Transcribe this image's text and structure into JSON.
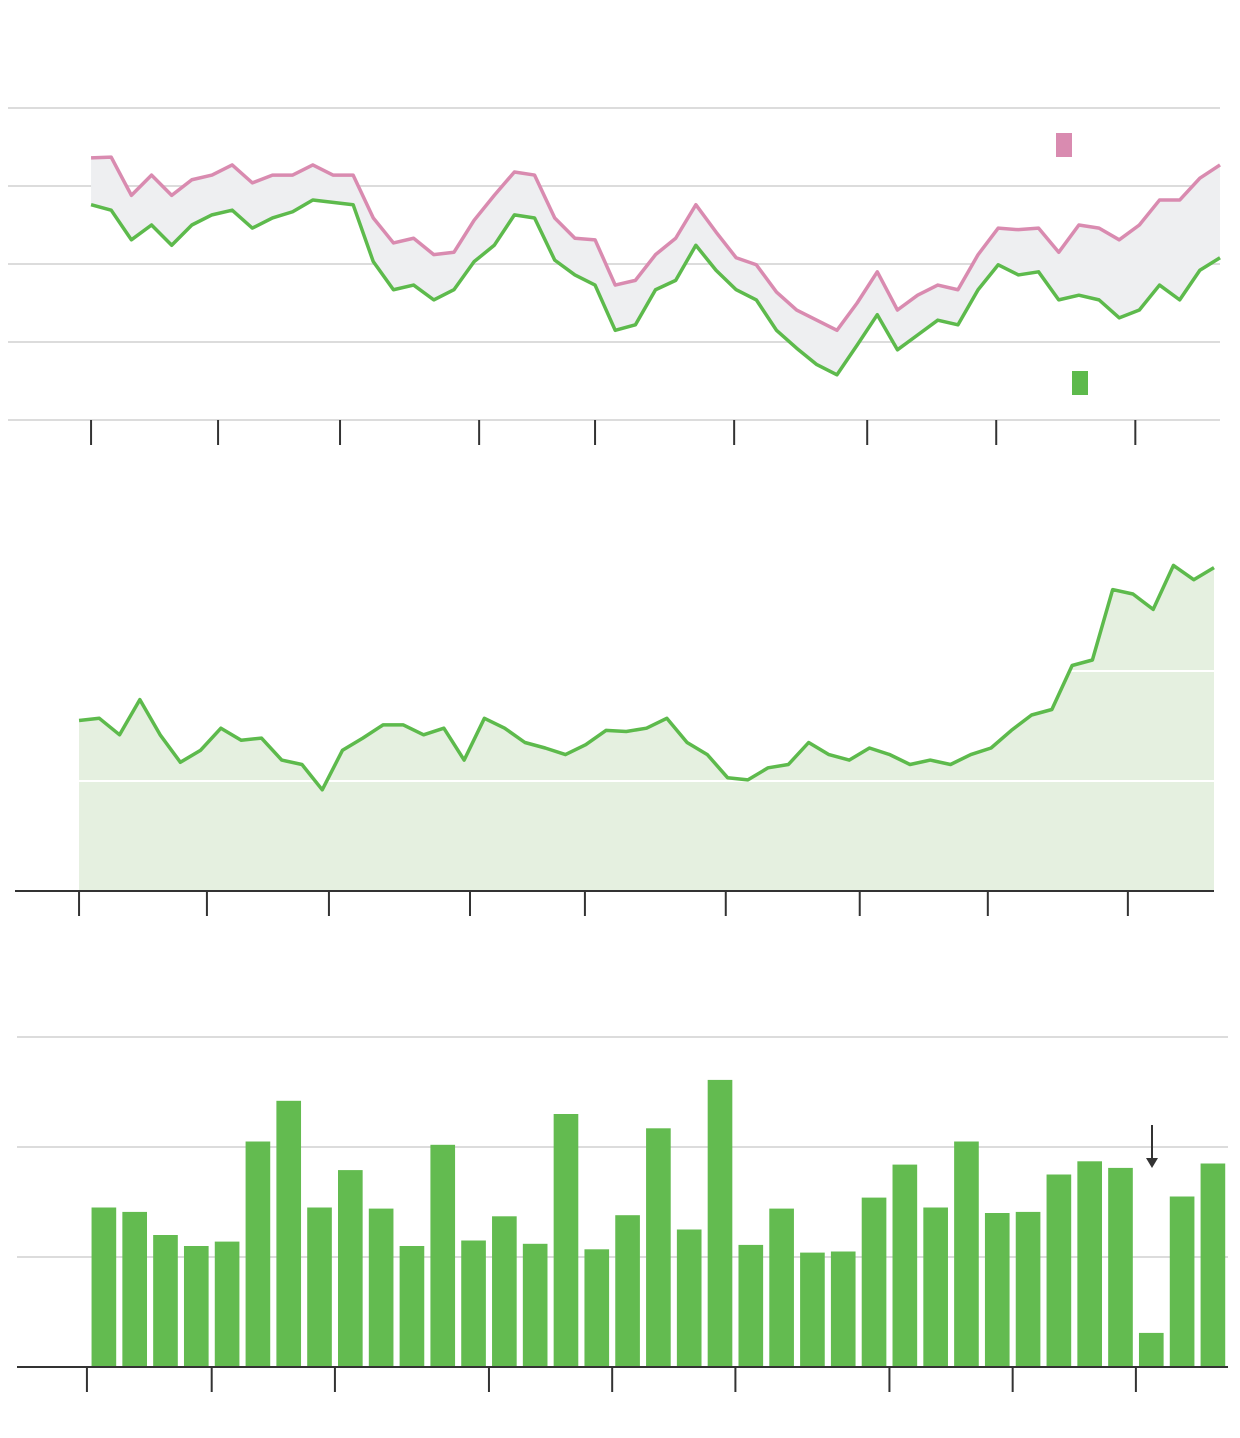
{
  "chart_data": [
    {
      "type": "line",
      "band": true,
      "legend": true,
      "grid": true,
      "axis_line": false,
      "x": [
        0,
        1,
        2,
        3,
        4,
        5,
        6,
        7,
        8,
        9,
        10,
        11,
        12,
        13,
        14,
        15,
        16,
        17,
        18,
        19,
        20,
        21,
        22,
        23,
        24,
        25,
        26,
        27,
        28,
        29,
        30,
        31,
        32,
        33,
        34,
        35,
        36,
        37,
        38,
        39,
        40,
        41,
        42,
        43,
        44,
        45,
        46,
        47,
        48,
        49,
        50,
        51,
        52,
        53,
        54,
        55,
        56
      ],
      "xlim": [
        -4.12,
        56
      ],
      "xticks": [
        0,
        6.3,
        12.35,
        19.25,
        25,
        31.9,
        38.5,
        44.9,
        51.8
      ],
      "ylim": [
        0,
        4
      ],
      "yticks": [
        0,
        1,
        2,
        3,
        4
      ],
      "series": [
        {
          "color": "#d98bb0",
          "values": [
            3.36,
            3.37,
            2.88,
            3.14,
            2.88,
            3.08,
            3.14,
            3.27,
            3.04,
            3.14,
            3.14,
            3.27,
            3.14,
            3.14,
            2.59,
            2.27,
            2.33,
            2.12,
            2.15,
            2.56,
            2.88,
            3.18,
            3.14,
            2.59,
            2.33,
            2.31,
            1.73,
            1.79,
            2.12,
            2.33,
            2.76,
            2.41,
            2.08,
            1.99,
            1.64,
            1.41,
            1.28,
            1.15,
            1.5,
            1.9,
            1.41,
            1.6,
            1.73,
            1.67,
            2.12,
            2.46,
            2.44,
            2.46,
            2.15,
            2.5,
            2.46,
            2.31,
            2.5,
            2.82,
            2.82,
            3.1,
            3.27
          ]
        },
        {
          "color": "#5dba4c",
          "values": [
            2.76,
            2.69,
            2.31,
            2.5,
            2.24,
            2.5,
            2.63,
            2.69,
            2.46,
            2.59,
            2.67,
            2.82,
            2.79,
            2.76,
            2.03,
            1.67,
            1.73,
            1.54,
            1.67,
            2.03,
            2.24,
            2.63,
            2.59,
            2.05,
            1.86,
            1.73,
            1.15,
            1.22,
            1.67,
            1.79,
            2.24,
            1.92,
            1.67,
            1.54,
            1.15,
            0.92,
            0.71,
            0.58,
            0.96,
            1.35,
            0.9,
            1.09,
            1.28,
            1.22,
            1.67,
            1.99,
            1.86,
            1.9,
            1.54,
            1.6,
            1.54,
            1.31,
            1.41,
            1.73,
            1.54,
            1.92,
            2.08
          ]
        }
      ]
    },
    {
      "type": "area",
      "grid": true,
      "axis_line": true,
      "color": "#5dba4c",
      "fill": "#e5f0e0",
      "x": [
        0,
        1,
        2,
        3,
        4,
        5,
        6,
        7,
        8,
        9,
        10,
        11,
        12,
        13,
        14,
        15,
        16,
        17,
        18,
        19,
        20,
        21,
        22,
        23,
        24,
        25,
        26,
        27,
        28,
        29,
        30,
        31,
        32,
        33,
        34,
        35,
        36,
        37,
        38,
        39,
        40,
        41,
        42,
        43,
        44,
        45,
        46,
        47,
        48,
        49,
        50,
        51,
        52,
        53,
        54,
        55,
        56
      ],
      "xlim": [
        -3.16,
        56
      ],
      "xticks": [
        0,
        6.31,
        12.33,
        19.29,
        24.96,
        31.91,
        38.52,
        44.84,
        51.75
      ],
      "ylim": [
        0,
        3
      ],
      "yticks": [
        0,
        1,
        2,
        3
      ],
      "values": [
        1.55,
        1.57,
        1.42,
        1.74,
        1.42,
        1.17,
        1.28,
        1.48,
        1.37,
        1.39,
        1.19,
        1.15,
        0.92,
        1.28,
        1.39,
        1.51,
        1.51,
        1.42,
        1.48,
        1.19,
        1.57,
        1.48,
        1.35,
        1.3,
        1.24,
        1.33,
        1.46,
        1.45,
        1.48,
        1.57,
        1.35,
        1.24,
        1.03,
        1.01,
        1.12,
        1.15,
        1.35,
        1.24,
        1.19,
        1.3,
        1.24,
        1.15,
        1.19,
        1.15,
        1.24,
        1.3,
        1.46,
        1.6,
        1.65,
        2.05,
        2.1,
        2.74,
        2.7,
        2.56,
        2.96,
        2.83,
        2.94
      ]
    },
    {
      "type": "bar",
      "grid": true,
      "axis_line": true,
      "color": "#63bb50",
      "x": [
        0,
        1,
        2,
        3,
        4,
        5,
        6,
        7,
        8,
        9,
        10,
        11,
        12,
        13,
        14,
        15,
        16,
        17,
        18,
        19,
        20,
        21,
        22,
        23,
        24,
        25,
        26,
        27,
        28,
        29,
        30,
        31,
        32,
        33,
        34,
        35,
        36
      ],
      "xlim": [
        -2.82,
        36.49
      ],
      "xticks": [
        -0.55,
        3.5,
        7.5,
        12.5,
        16.5,
        20.5,
        25.5,
        29.5,
        33.5
      ],
      "ylim": [
        0,
        3
      ],
      "yticks": [
        0,
        1,
        2,
        3
      ],
      "values": [
        1.45,
        1.41,
        1.2,
        1.1,
        1.14,
        2.05,
        2.42,
        1.45,
        1.79,
        1.44,
        1.1,
        2.02,
        1.15,
        1.37,
        1.12,
        2.3,
        1.07,
        1.38,
        2.17,
        1.25,
        2.61,
        1.11,
        1.44,
        1.04,
        1.05,
        1.54,
        1.84,
        1.45,
        2.05,
        1.4,
        1.41,
        1.75,
        1.87,
        1.81,
        0.31,
        1.55,
        1.85
      ]
    }
  ]
}
